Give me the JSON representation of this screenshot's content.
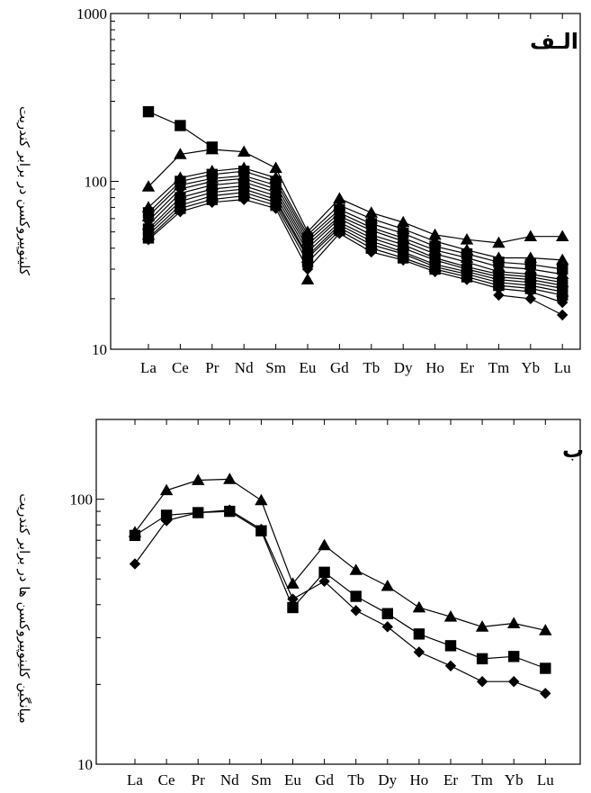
{
  "chart_data": [
    {
      "type": "line",
      "panel_label": "الـف",
      "ylabel": "کلینوپیروکسن در برابر کندریت",
      "yscale": "log",
      "ylim": [
        10,
        1000
      ],
      "yticks": [
        "10",
        "100",
        "1000"
      ],
      "categories": [
        "La",
        "Ce",
        "Pr",
        "Nd",
        "Sm",
        "Eu",
        "Gd",
        "Tb",
        "Dy",
        "Ho",
        "Er",
        "Tm",
        "Yb",
        "Lu"
      ],
      "series": [
        {
          "marker": "triangle",
          "values": [
            93,
            145,
            155,
            150,
            120,
            50,
            79,
            65,
            57,
            48,
            45,
            43,
            47,
            47
          ]
        },
        {
          "marker": "square",
          "values": [
            260,
            215,
            160,
            null,
            null,
            null,
            null,
            null,
            null,
            null,
            null,
            null,
            null,
            null
          ]
        },
        {
          "marker": "triangle",
          "values": [
            70,
            105,
            115,
            120,
            105,
            48,
            72,
            60,
            52,
            44,
            39,
            35,
            35,
            34
          ]
        },
        {
          "marker": "square",
          "values": [
            65,
            100,
            110,
            115,
            100,
            46,
            68,
            56,
            49,
            41,
            37,
            33,
            32,
            30
          ]
        },
        {
          "marker": "triangle",
          "values": [
            62,
            95,
            104,
            108,
            95,
            44,
            65,
            53,
            46,
            39,
            35,
            31,
            30,
            28
          ]
        },
        {
          "marker": "diamond",
          "values": [
            58,
            90,
            100,
            104,
            90,
            42,
            62,
            51,
            44,
            37,
            33,
            29,
            28,
            26
          ]
        },
        {
          "marker": "triangle",
          "values": [
            55,
            85,
            95,
            99,
            86,
            40,
            60,
            48,
            42,
            35,
            31,
            28,
            27,
            25
          ]
        },
        {
          "marker": "square",
          "values": [
            52,
            80,
            90,
            94,
            82,
            38,
            57,
            46,
            40,
            34,
            30,
            27,
            26,
            24
          ]
        },
        {
          "marker": "diamond",
          "values": [
            50,
            76,
            86,
            90,
            78,
            36,
            55,
            44,
            38,
            32,
            29,
            26,
            25,
            23
          ]
        },
        {
          "marker": "triangle",
          "values": [
            48,
            72,
            82,
            86,
            75,
            35,
            53,
            42,
            37,
            31,
            28,
            25,
            24,
            22
          ]
        },
        {
          "marker": "square",
          "values": [
            46,
            69,
            78,
            82,
            72,
            33,
            51,
            40,
            35,
            30,
            27,
            24,
            23,
            21
          ]
        },
        {
          "marker": "diamond",
          "values": [
            45,
            66,
            75,
            78,
            69,
            30,
            49,
            38,
            34,
            29,
            26,
            23,
            22,
            19
          ]
        },
        {
          "marker": "triangle",
          "values": [
            null,
            null,
            null,
            null,
            null,
            26,
            null,
            null,
            null,
            null,
            null,
            null,
            null,
            null
          ]
        },
        {
          "marker": "diamond",
          "values": [
            null,
            null,
            null,
            null,
            null,
            null,
            null,
            null,
            null,
            null,
            null,
            21,
            20,
            16
          ]
        }
      ]
    },
    {
      "type": "line",
      "panel_label": "ب",
      "ylabel": "میانگین کلینوپیروکسن ها در برابر کندریت",
      "yscale": "log",
      "ylim": [
        10,
        200
      ],
      "yticks": [
        "10",
        "100"
      ],
      "categories": [
        "La",
        "Ce",
        "Pr",
        "Nd",
        "Sm",
        "Eu",
        "Gd",
        "Tb",
        "Dy",
        "Ho",
        "Er",
        "Tm",
        "Yb",
        "Lu"
      ],
      "series": [
        {
          "marker": "triangle",
          "values": [
            75,
            108,
            118,
            119,
            99,
            48,
            67,
            54,
            47,
            39,
            36,
            33,
            34,
            32
          ]
        },
        {
          "marker": "square",
          "values": [
            73,
            87,
            89,
            90,
            76,
            39,
            53,
            43,
            37,
            31,
            28,
            25,
            25.5,
            23
          ]
        },
        {
          "marker": "diamond",
          "values": [
            57,
            83,
            89,
            91,
            77,
            42,
            49,
            38,
            33,
            26.5,
            23.5,
            20.5,
            20.5,
            18.5
          ]
        }
      ]
    }
  ]
}
